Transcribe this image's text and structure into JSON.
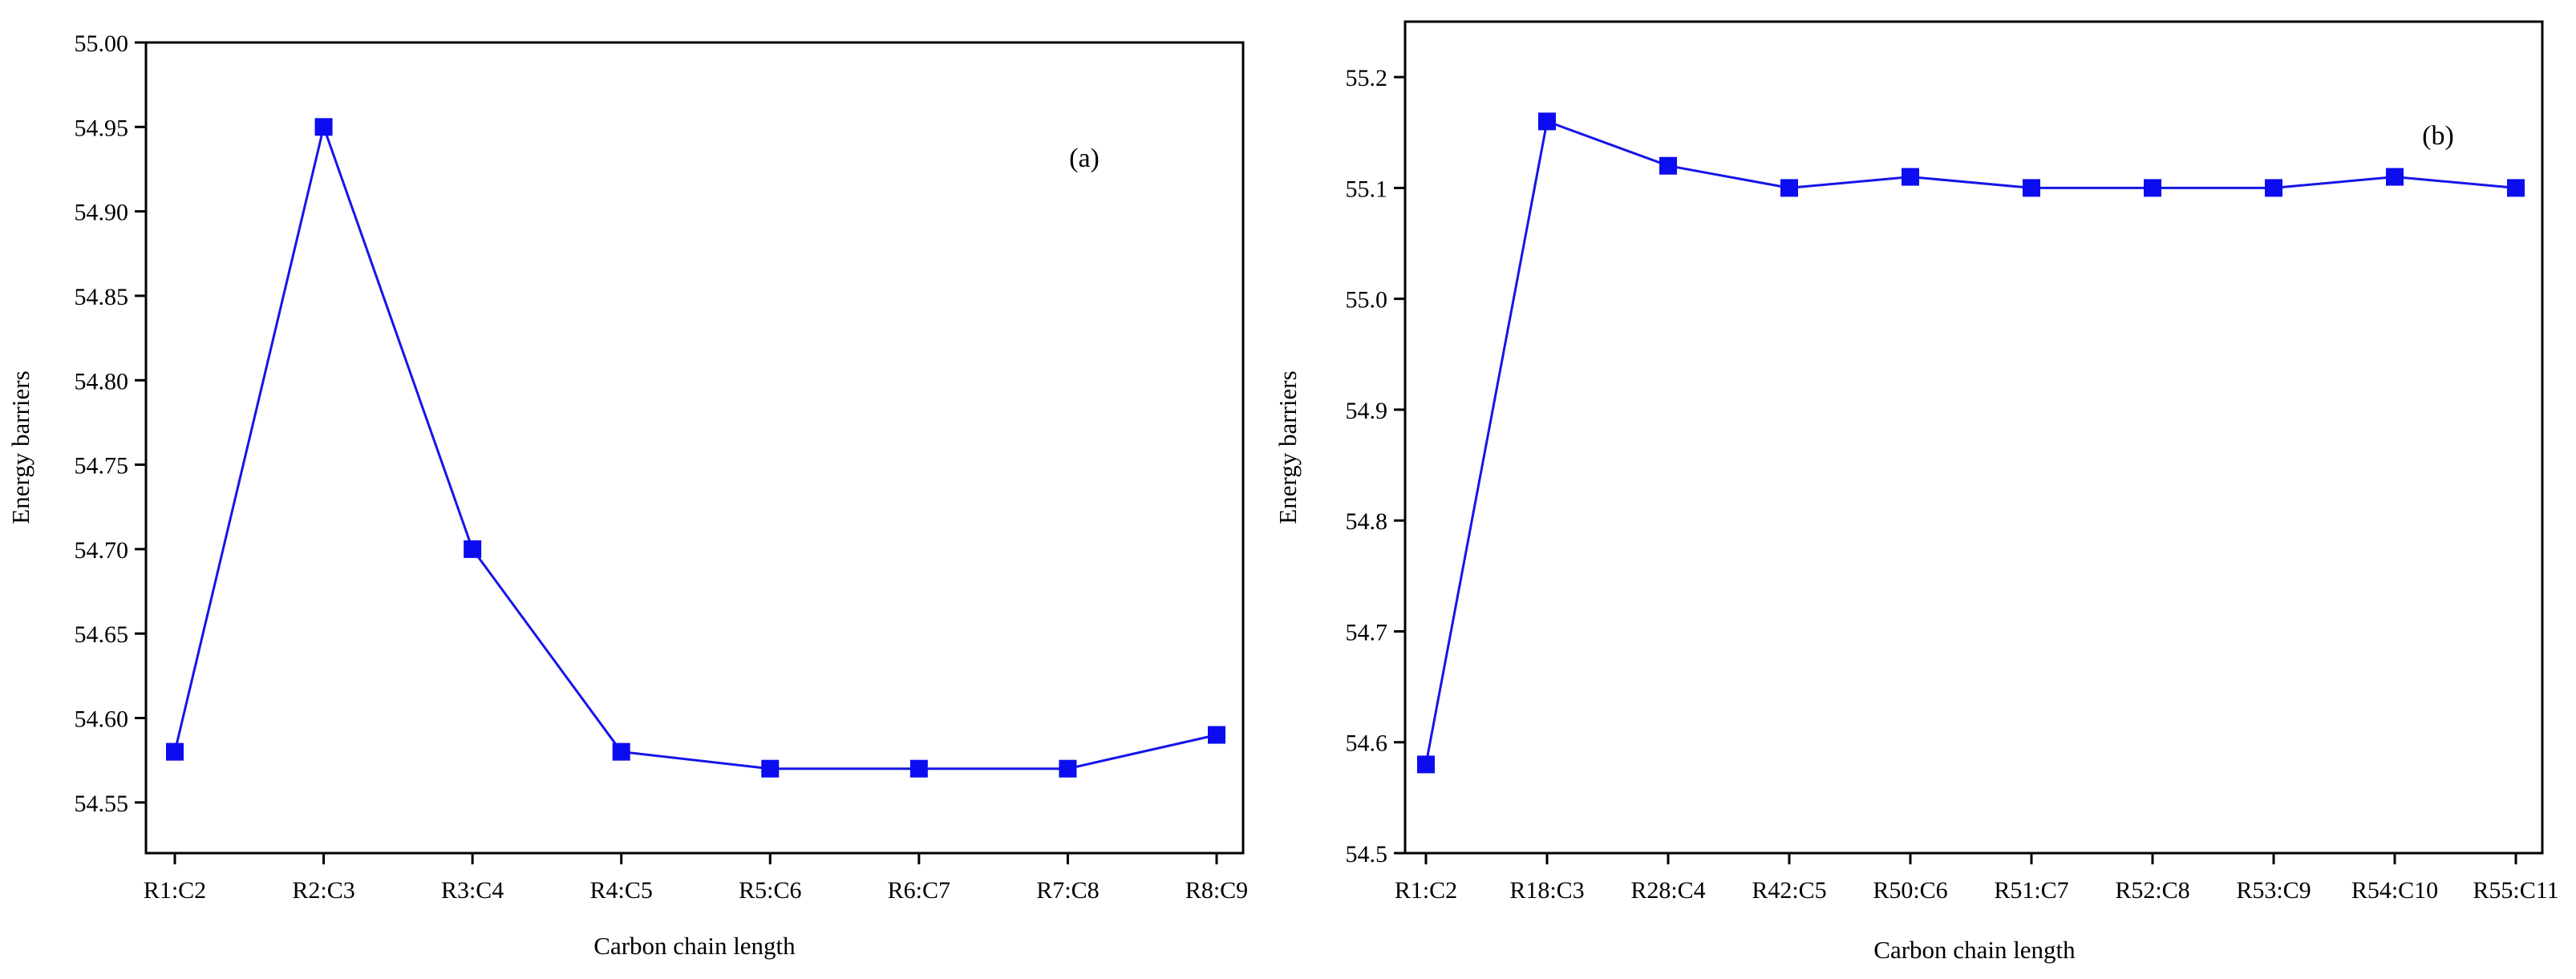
{
  "chart_data": [
    {
      "type": "line",
      "panel_label": "(a)",
      "xlabel": "Carbon chain length",
      "ylabel": "Energy barriers",
      "categories": [
        "R1:C2",
        "R2:C3",
        "R3:C4",
        "R4:C5",
        "R5:C6",
        "R6:C7",
        "R7:C8",
        "R8:C9"
      ],
      "series": [
        {
          "name": "Energy barriers",
          "values": [
            54.58,
            54.95,
            54.7,
            54.58,
            54.57,
            54.57,
            54.57,
            54.59
          ]
        }
      ],
      "ylim": [
        54.52,
        55.0
      ],
      "yticks": [
        54.55,
        54.6,
        54.65,
        54.7,
        54.75,
        54.8,
        54.85,
        54.9,
        54.95,
        55.0
      ],
      "ytick_labels": [
        "54.55",
        "54.60",
        "54.65",
        "54.70",
        "54.75",
        "54.80",
        "54.85",
        "54.90",
        "54.95",
        "55.00"
      ],
      "line_color": "#1515e8",
      "marker_color": "#0c0cf0",
      "marker": "square",
      "grid": false
    },
    {
      "type": "line",
      "panel_label": "(b)",
      "xlabel": "Carbon chain length",
      "ylabel": "Energy barriers",
      "categories": [
        "R1:C2",
        "R18:C3",
        "R28:C4",
        "R42:C5",
        "R50:C6",
        "R51:C7",
        "R52:C8",
        "R53:C9",
        "R54:C10",
        "R55:C11"
      ],
      "series": [
        {
          "name": "Energy barriers",
          "values": [
            54.58,
            55.16,
            55.12,
            55.1,
            55.11,
            55.1,
            55.1,
            55.1,
            55.11,
            55.1
          ]
        }
      ],
      "ylim": [
        54.5,
        55.25
      ],
      "yticks": [
        54.5,
        54.6,
        54.7,
        54.8,
        54.9,
        55.0,
        55.1,
        55.2
      ],
      "ytick_labels": [
        "54.5",
        "54.6",
        "54.7",
        "54.8",
        "54.9",
        "55.0",
        "55.1",
        "55.2"
      ],
      "line_color": "#1515e8",
      "marker_color": "#0c0cf0",
      "marker": "square",
      "grid": false
    }
  ]
}
